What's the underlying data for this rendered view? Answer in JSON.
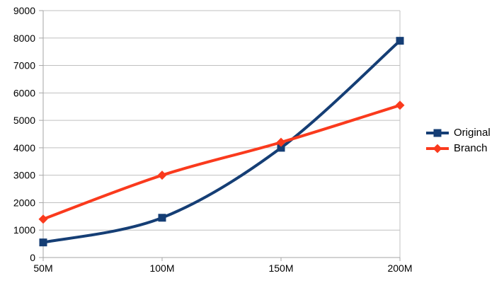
{
  "chart_data": {
    "type": "line",
    "title": "",
    "xlabel": "",
    "ylabel": "",
    "categories": [
      "50M",
      "100M",
      "150M",
      "200M"
    ],
    "series": [
      {
        "name": "Original",
        "values": [
          550,
          1450,
          4000,
          7900
        ],
        "color": "#153e75",
        "marker": "square"
      },
      {
        "name": "Branch",
        "values": [
          1400,
          3000,
          4200,
          5550
        ],
        "color": "#fa3a1d",
        "marker": "diamond"
      }
    ],
    "ylim": [
      0,
      9000
    ],
    "ytick_step": 1000,
    "yticks": [
      "0",
      "1000",
      "2000",
      "3000",
      "4000",
      "5000",
      "6000",
      "7000",
      "8000",
      "9000"
    ],
    "grid": "horizontal",
    "smooth_lines": true,
    "legend_position": "right",
    "colors": {
      "axis": "#a6a6a6",
      "grid": "#c0c0c0",
      "text": "#000000",
      "background": "#ffffff"
    }
  }
}
